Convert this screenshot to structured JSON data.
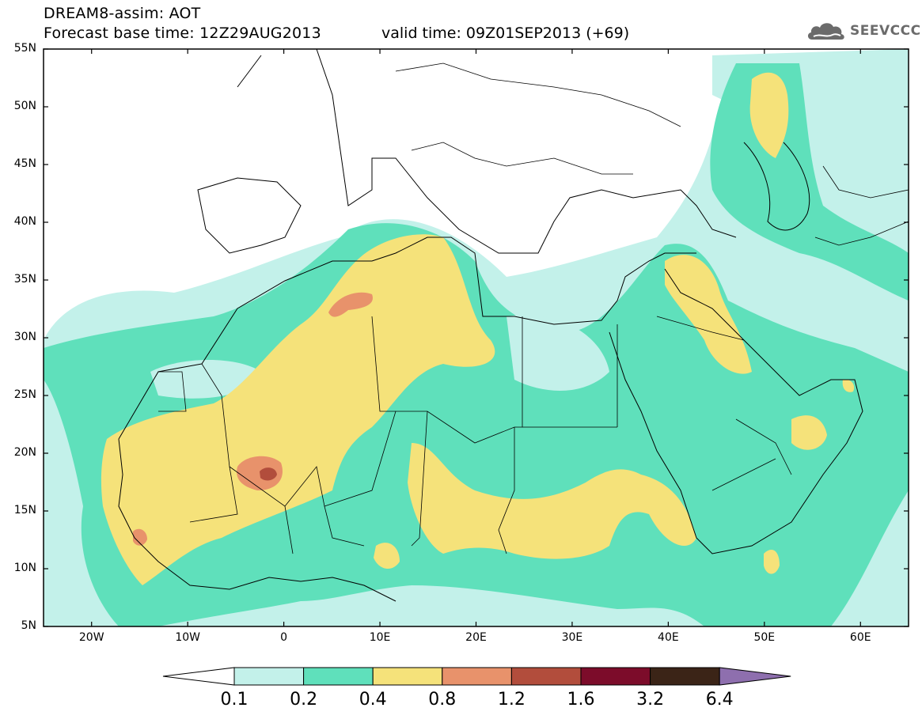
{
  "header": {
    "title": "DREAM8-assim: AOT",
    "base_time": "Forecast base time: 12Z29AUG2013",
    "valid_time": "valid time: 09Z01SEP2013 (+69)"
  },
  "logo": {
    "text": "SEEVCCC",
    "icon": "cloud-icon"
  },
  "map": {
    "lat_labels": [
      "55N",
      "50N",
      "45N",
      "40N",
      "35N",
      "30N",
      "25N",
      "20N",
      "15N",
      "10N",
      "5N"
    ],
    "lon_labels": [
      "20W",
      "10W",
      "0",
      "10E",
      "20E",
      "30E",
      "40E",
      "50E",
      "60E"
    ],
    "lat_range": [
      5,
      55
    ],
    "lon_range": [
      -25,
      65
    ]
  },
  "colorbar": {
    "labels": [
      "0.1",
      "0.2",
      "0.4",
      "0.8",
      "1.2",
      "1.6",
      "3.2",
      "6.4"
    ],
    "colors": [
      "#ffffff",
      "#c3f1ea",
      "#5fe0bb",
      "#f5e27a",
      "#e8926b",
      "#b24d3c",
      "#7c0c2a",
      "#3b2417",
      "#8e6fae"
    ]
  },
  "field_colors": {
    "c01": "#c3f1ea",
    "c02": "#5fe0bb",
    "c04": "#f5e27a",
    "c08": "#e8926b",
    "c12": "#b24d3c"
  }
}
